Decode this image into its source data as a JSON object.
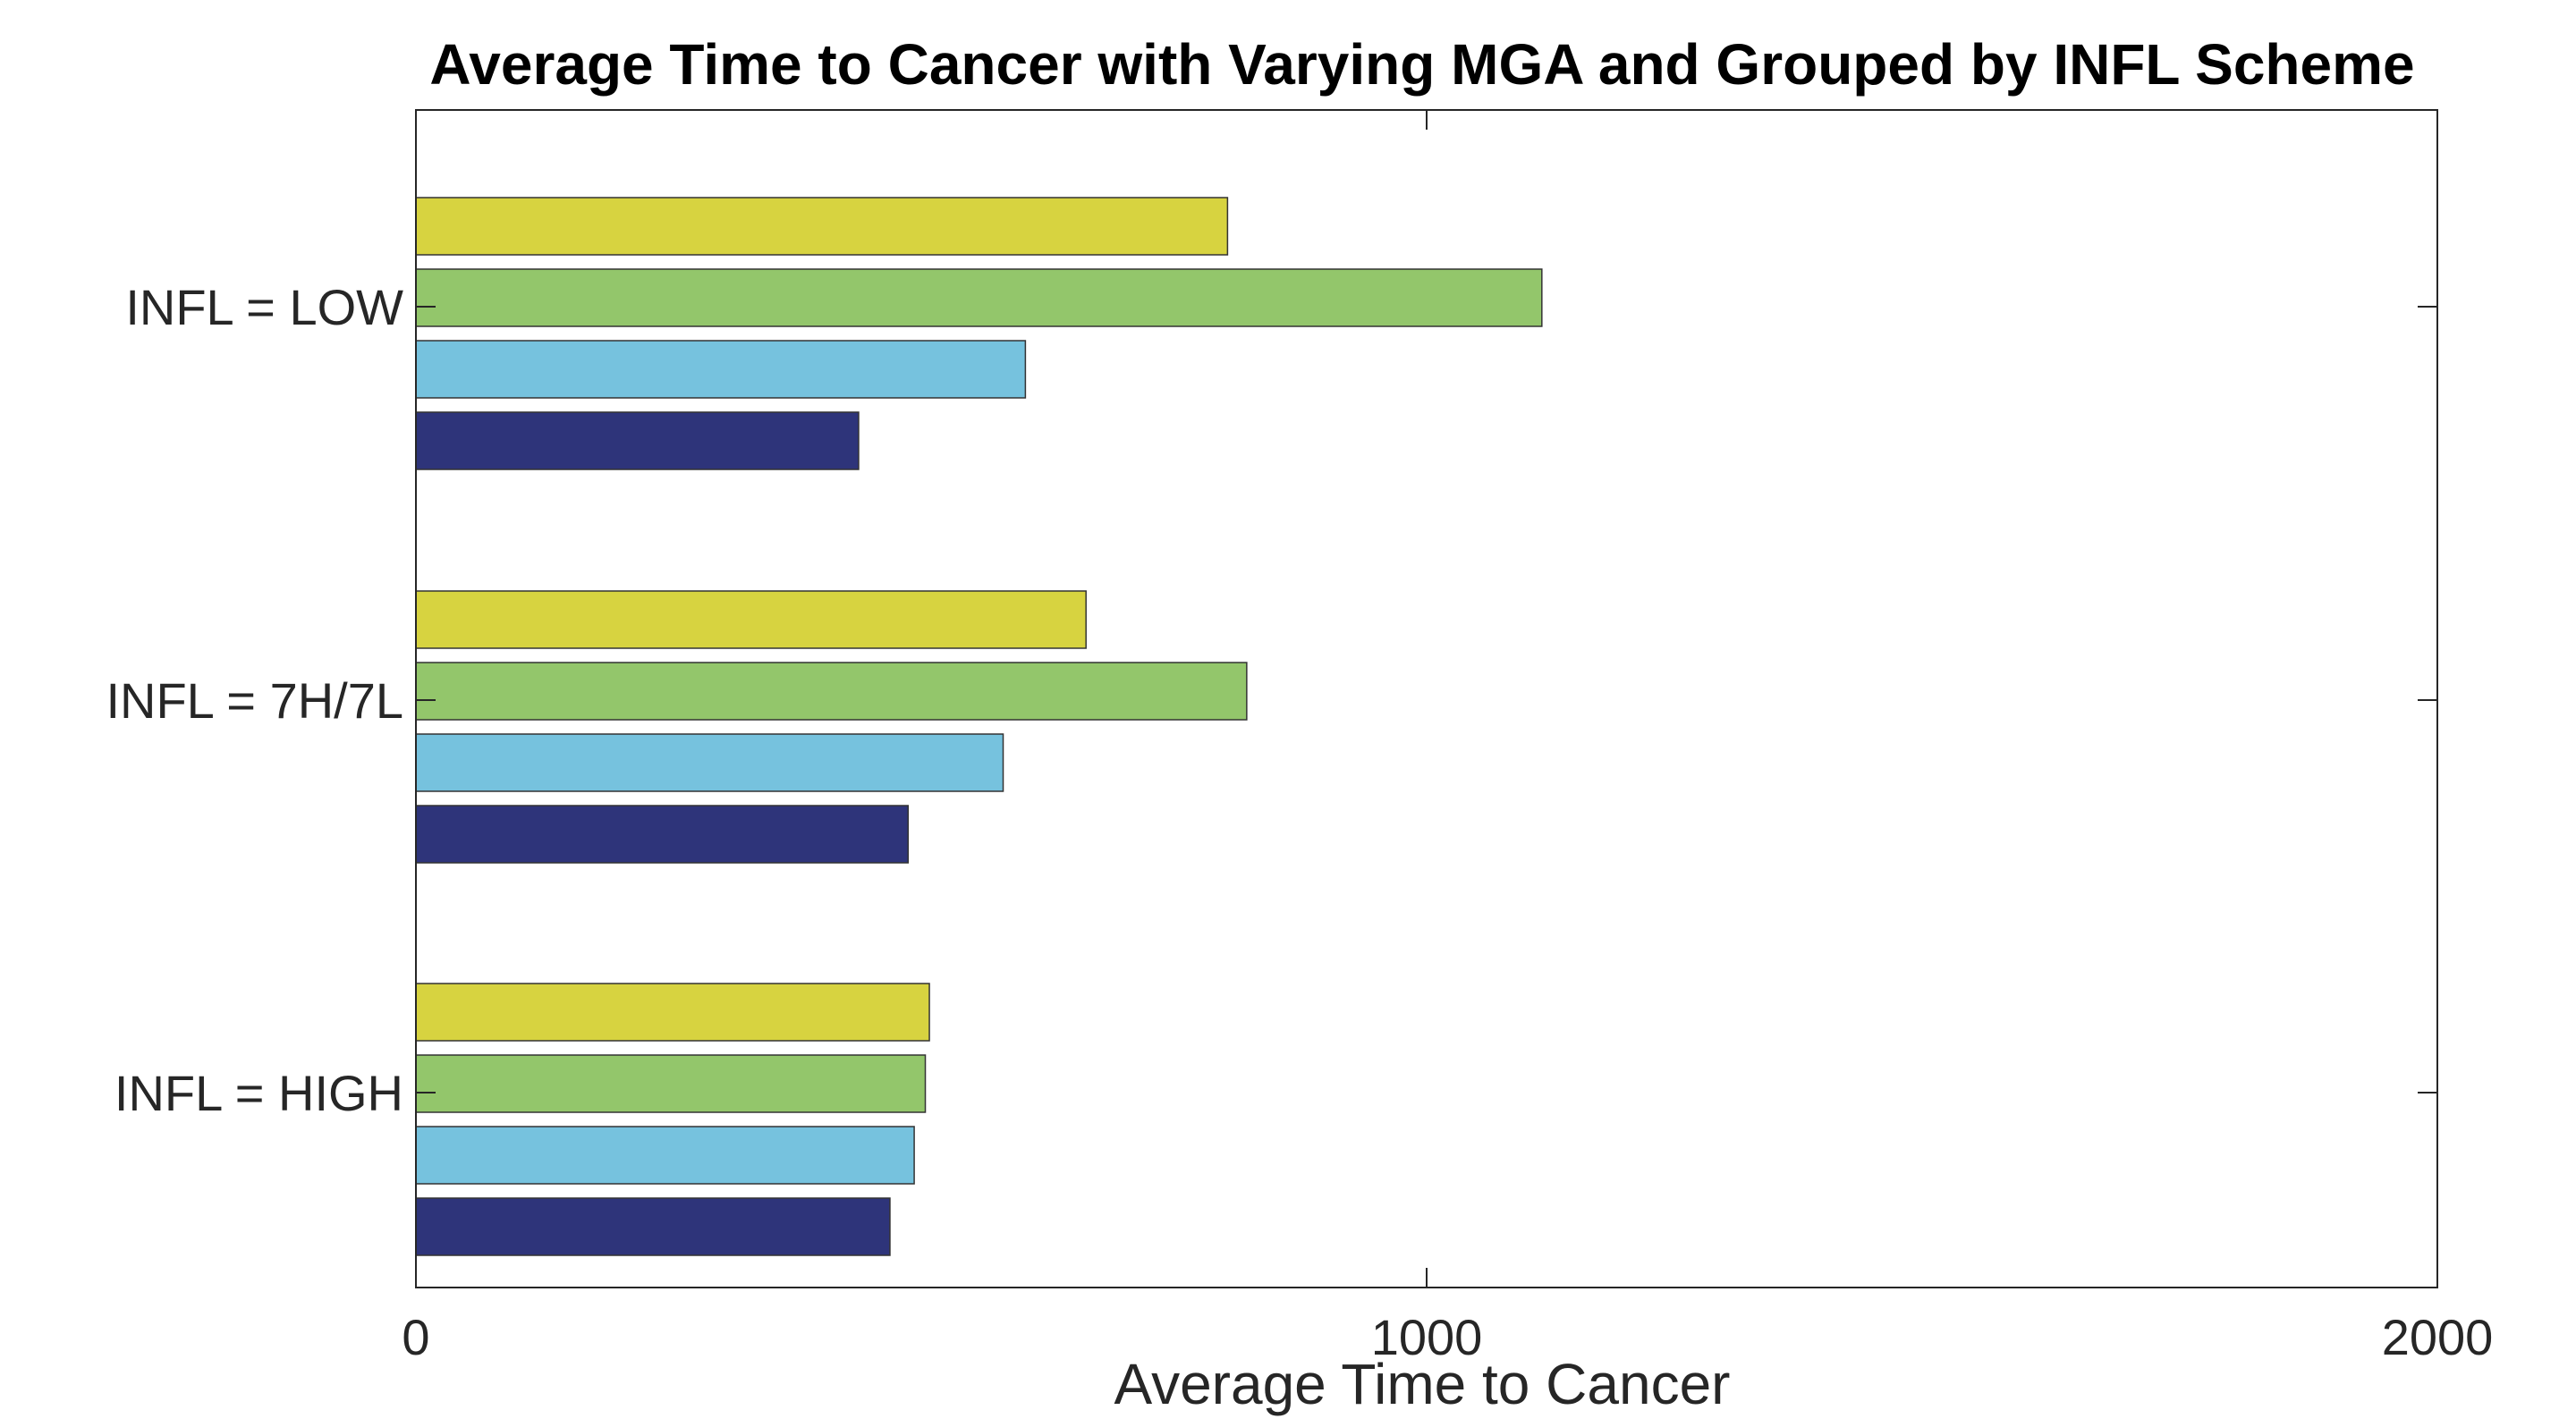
{
  "chart_data": {
    "type": "bar",
    "orientation": "horizontal",
    "title": "Average Time to Cancer with Varying MGA and Grouped by INFL Scheme",
    "xlabel": "Average Time to Cancer",
    "ylabel": "",
    "xlim": [
      0,
      2000
    ],
    "xticks": [
      "0",
      "1000",
      "2000"
    ],
    "xtick_values": [
      0,
      1000,
      2000
    ],
    "categories": [
      "INFL = LOW",
      "INFL = 7H/7L",
      "INFL = HIGH"
    ],
    "grid": false,
    "legend": "none",
    "series": [
      {
        "color": "#D7D340",
        "values": [
          803,
          663,
          508
        ]
      },
      {
        "color": "#93C66B",
        "values": [
          1114,
          822,
          504
        ]
      },
      {
        "color": "#76C2DE",
        "values": [
          603,
          581,
          493
        ]
      },
      {
        "color": "#2E347A",
        "values": [
          438,
          487,
          469
        ]
      }
    ]
  }
}
